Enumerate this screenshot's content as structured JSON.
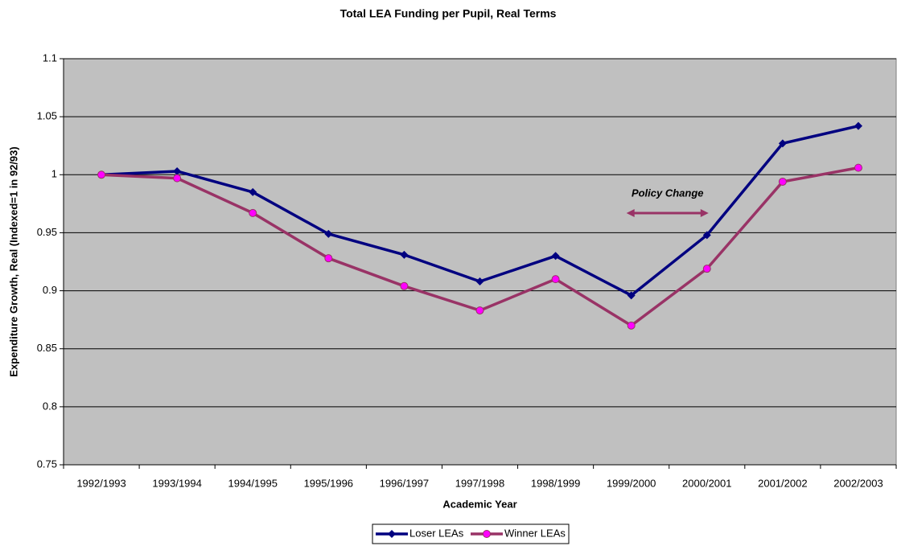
{
  "chart_data": {
    "type": "line",
    "title": "Total LEA Funding per Pupil, Real Terms",
    "x_label": "Academic Year",
    "y_label": "Expenditure Growth, Real (Indexed=1 in 92/93)",
    "categories": [
      "1992/1993",
      "1993/1994",
      "1994/1995",
      "1995/1996",
      "1996/1997",
      "1997/1998",
      "1998/1999",
      "1999/2000",
      "2000/2001",
      "2001/2002",
      "2002/2003"
    ],
    "series": [
      {
        "name": "Loser LEAs",
        "color": "#000080",
        "marker": "diamond",
        "values": [
          1.0,
          1.003,
          0.985,
          0.949,
          0.931,
          0.908,
          0.93,
          0.896,
          0.948,
          1.027,
          1.042
        ]
      },
      {
        "name": "Winner LEAs",
        "color": "#993366",
        "marker_color": "#ff00ff",
        "marker": "circle",
        "values": [
          1.0,
          0.997,
          0.967,
          0.928,
          0.904,
          0.883,
          0.91,
          0.87,
          0.919,
          0.994,
          1.006
        ]
      }
    ],
    "annotation": {
      "text": "Policy Change",
      "color": "#993366"
    },
    "ylim": [
      0.75,
      1.1
    ],
    "yticks": [
      0.75,
      0.8,
      0.85,
      0.9,
      0.95,
      1,
      1.05,
      1.1
    ],
    "grid": true,
    "legend": "bottom"
  }
}
